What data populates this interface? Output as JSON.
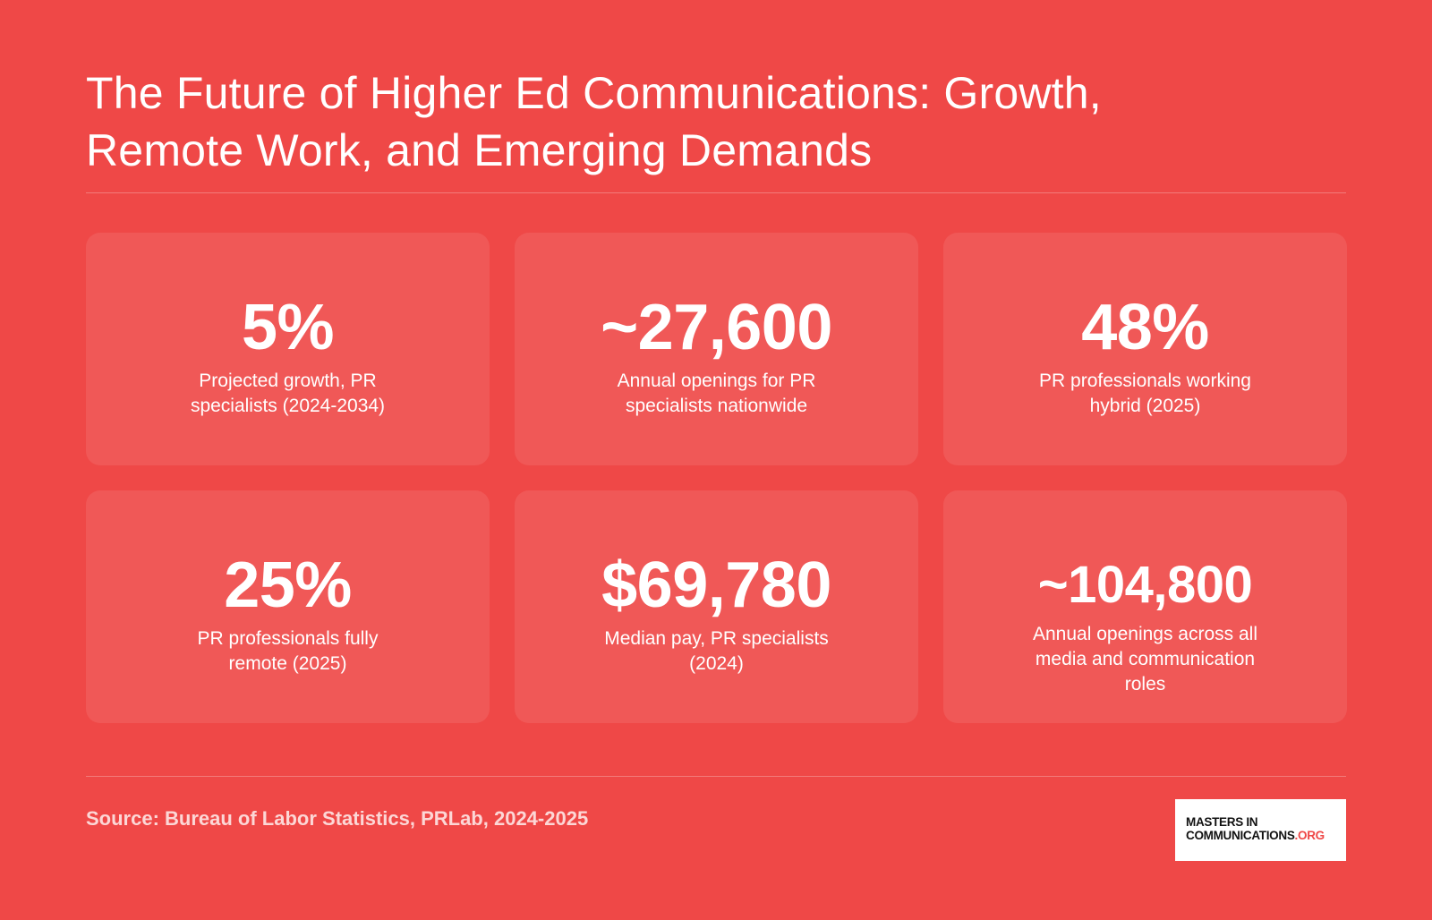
{
  "title": {
    "line1": "The Future of Higher Ed Communications: Growth,",
    "line2": "Remote Work, and Emerging Demands"
  },
  "stats": [
    {
      "value": "5%",
      "label": "Projected growth, PR specialists (2024-2034)"
    },
    {
      "value": "~27,600",
      "label": "Annual openings for PR specialists nationwide"
    },
    {
      "value": "48%",
      "label": "PR professionals working hybrid (2025)"
    },
    {
      "value": "25%",
      "label": "PR professionals fully remote (2025)"
    },
    {
      "value": "$69,780",
      "label": "Median pay, PR specialists (2024)"
    },
    {
      "value": "~104,800",
      "label": "Annual openings across all media and communication roles"
    }
  ],
  "footer": {
    "source": "Source: Bureau of Labor Statistics, PRLab, 2024-2025"
  },
  "logo": {
    "line1": "MASTERS IN",
    "line2_main": "COMMUNICATIONS",
    "line2_suffix": ".ORG"
  },
  "colors": {
    "background": "#EF4847",
    "card": "rgba(255,255,255,0.09)",
    "text": "#FFFFFF",
    "logo_accent": "#EF4847"
  }
}
